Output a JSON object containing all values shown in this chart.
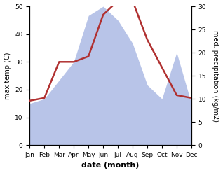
{
  "months": [
    "Jan",
    "Feb",
    "Mar",
    "Apr",
    "May",
    "Jun",
    "Jul",
    "Aug",
    "Sep",
    "Oct",
    "Nov",
    "Dec"
  ],
  "temperature": [
    16,
    17,
    30,
    30,
    32,
    47,
    52,
    52,
    38,
    28,
    18,
    17
  ],
  "precipitation": [
    9,
    10,
    14,
    18,
    28,
    30,
    27,
    22,
    13,
    10,
    20,
    9
  ],
  "temp_color": "#b03030",
  "precip_fill_color": "#b8c4e8",
  "ylabel_left": "max temp (C)",
  "ylabel_right": "med. precipitation (kg/m2)",
  "xlabel": "date (month)",
  "ylim_left": [
    0,
    50
  ],
  "ylim_right": [
    0,
    30
  ],
  "yticks_left": [
    0,
    10,
    20,
    30,
    40,
    50
  ],
  "yticks_right": [
    0,
    5,
    10,
    15,
    20,
    25,
    30
  ],
  "line_width": 1.8,
  "label_fontsize": 7,
  "tick_fontsize": 6.5,
  "xlabel_fontsize": 8
}
